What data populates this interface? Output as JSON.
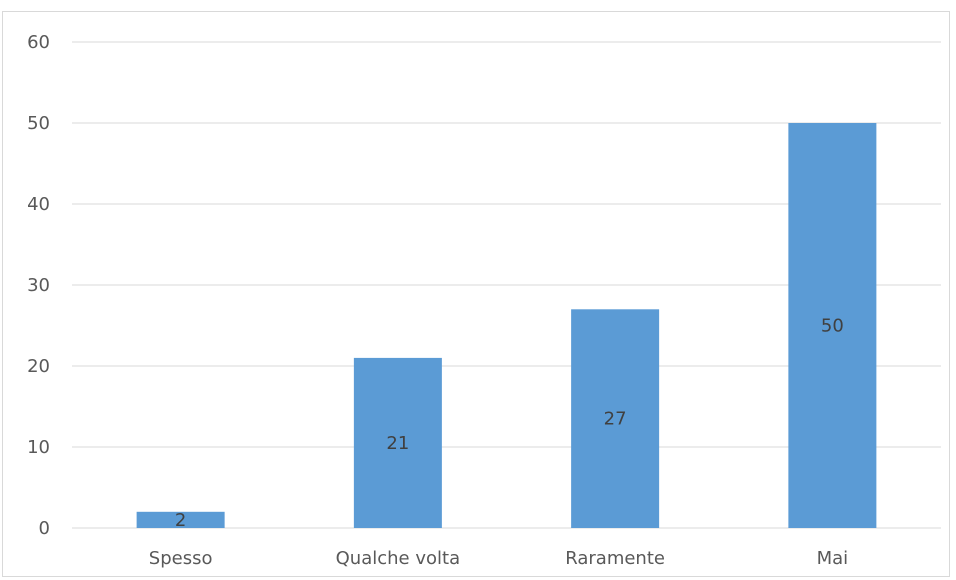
{
  "chart_data": {
    "type": "bar",
    "categories": [
      "Spesso",
      "Qualche volta",
      "Raramente",
      "Mai"
    ],
    "values": [
      2,
      21,
      27,
      50
    ],
    "data_labels": [
      "2",
      "21",
      "27",
      "50"
    ],
    "ylim": [
      0,
      60
    ],
    "yticks": [
      0,
      10,
      20,
      30,
      40,
      50,
      60
    ],
    "ytick_labels": [
      "0",
      "10",
      "20",
      "30",
      "40",
      "50",
      "60"
    ],
    "grid": true,
    "legend": "none",
    "bar_color": "#5b9bd5",
    "grid_color": "#d9d9d9"
  }
}
